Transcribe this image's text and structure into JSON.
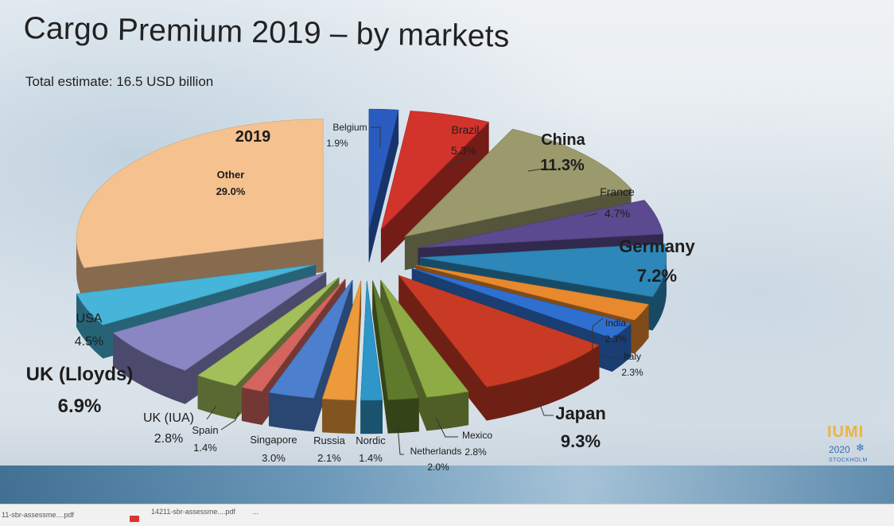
{
  "title": "Cargo Premium 2019 – by markets",
  "subtitle": "Total estimate: 16.5 USD billion",
  "logo": {
    "name": "IUMI",
    "year": "2020",
    "city": "STOCKHOLM",
    "star_icon": "snowflake-icon"
  },
  "taskbar": {
    "item1": "11-sbr-assessme....pdf",
    "item2": "14211-sbr-assessme....pdf",
    "more": "..."
  },
  "chart_data": {
    "type": "pie",
    "title": "Cargo Premium 2019 – by markets",
    "subtitle": "Total estimate: 16.5 USD billion",
    "inner_label": "2019",
    "unit": "%",
    "slices": [
      {
        "name": "Belgium",
        "value": 1.9,
        "label": "1.9%",
        "color": "#2a5cbf"
      },
      {
        "name": "Brazil",
        "value": 5.3,
        "label": "5.3%",
        "color": "#d2332b"
      },
      {
        "name": "China",
        "value": 11.3,
        "label": "11.3%",
        "color": "#9b9a6c"
      },
      {
        "name": "France",
        "value": 4.7,
        "label": "4.7%",
        "color": "#5b4a8f"
      },
      {
        "name": "Germany",
        "value": 7.2,
        "label": "7.2%",
        "color": "#2d87b8"
      },
      {
        "name": "India",
        "value": 2.3,
        "label": "2.3%",
        "color": "#e8892e"
      },
      {
        "name": "Italy",
        "value": 2.3,
        "label": "2.3%",
        "color": "#2f6fd0"
      },
      {
        "name": "Japan",
        "value": 9.3,
        "label": "9.3%",
        "color": "#c93a24"
      },
      {
        "name": "Mexico",
        "value": 2.8,
        "label": "2.8%",
        "color": "#8fab45"
      },
      {
        "name": "Netherlands",
        "value": 2.0,
        "label": "2.0%",
        "color": "#5f7a2c"
      },
      {
        "name": "Nordic",
        "value": 1.4,
        "label": "1.4%",
        "color": "#2e96c8"
      },
      {
        "name": "Russia",
        "value": 2.1,
        "label": "2.1%",
        "color": "#ec9a3a"
      },
      {
        "name": "Singapore",
        "value": 3.0,
        "label": "3.0%",
        "color": "#4d7fcf"
      },
      {
        "name": "Spain",
        "value": 1.4,
        "label": "1.4%",
        "color": "#d3655e"
      },
      {
        "name": "UK (IUA)",
        "value": 2.8,
        "label": "2.8%",
        "color": "#a3bf5a"
      },
      {
        "name": "UK (Lloyds)",
        "value": 6.9,
        "label": "6.9%",
        "color": "#8a86c4"
      },
      {
        "name": "USA",
        "value": 4.5,
        "label": "4.5%",
        "color": "#47b4d9"
      },
      {
        "name": "Other",
        "value": 29.0,
        "label": "29.0%",
        "color": "#f5c28f"
      }
    ]
  }
}
